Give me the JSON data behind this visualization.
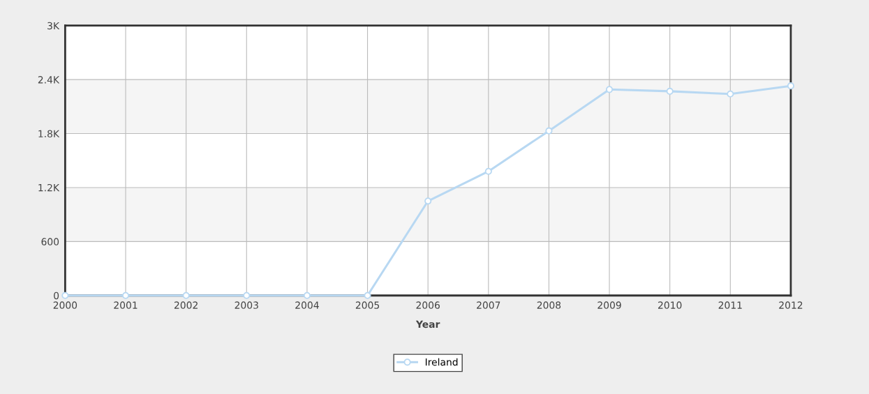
{
  "chart_data": {
    "type": "line",
    "xlabel": "Year",
    "x": [
      2000,
      2001,
      2002,
      2003,
      2004,
      2005,
      2006,
      2007,
      2008,
      2009,
      2010,
      2011,
      2012
    ],
    "series": [
      {
        "name": "Ireland",
        "color": "#b8d8f2",
        "values": [
          0,
          0,
          0,
          0,
          0,
          0,
          1050,
          1380,
          1830,
          2290,
          2270,
          2240,
          2330
        ]
      }
    ],
    "xlim": [
      2000,
      2012
    ],
    "xticks": [
      2000,
      2001,
      2002,
      2003,
      2004,
      2005,
      2006,
      2007,
      2008,
      2009,
      2010,
      2011,
      2012
    ],
    "ylim": [
      0,
      3000
    ],
    "yticks": [
      0,
      600,
      {
        "value": 1200,
        "label": "1.2K"
      },
      {
        "value": 1800,
        "label": "1.8K"
      },
      {
        "value": 2400,
        "label": "2.4K"
      },
      {
        "value": 3000,
        "label": "3K"
      }
    ],
    "grid": true,
    "legend": "bottom",
    "marker": "circle",
    "line_style": "solid"
  }
}
